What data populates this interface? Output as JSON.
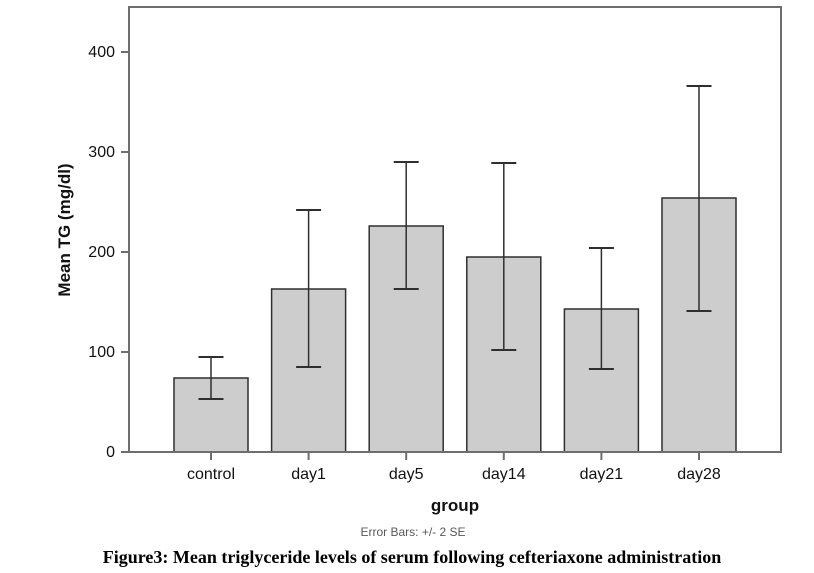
{
  "figure": {
    "caption": "Figure3: Mean triglyceride levels of serum following cefteriaxone administration",
    "footnote": "Error Bars: +/- 2 SE"
  },
  "chart_data": {
    "type": "bar",
    "title": "",
    "xlabel": "group",
    "ylabel": "Mean TG (mg/dl)",
    "categories": [
      "control",
      "day1",
      "day5",
      "day14",
      "day21",
      "day28"
    ],
    "values": [
      74,
      163,
      226,
      195,
      143,
      254
    ],
    "error_bars": {
      "label": "+/- 2 SE",
      "upper": [
        95,
        242,
        290,
        289,
        204,
        366
      ],
      "lower": [
        53,
        85,
        163,
        102,
        83,
        141
      ]
    },
    "ylim": [
      0,
      445
    ],
    "yticks": [
      0,
      100,
      200,
      300,
      400
    ],
    "grid": false,
    "legend_position": "none",
    "colors": {
      "bar_fill": "#cdcdcd",
      "bar_border": "#2f2f2f",
      "error_bar": "#2f2f2f",
      "frame": "#6e6e6e",
      "tick_text": "#111111",
      "footnote_text": "#595959"
    }
  }
}
